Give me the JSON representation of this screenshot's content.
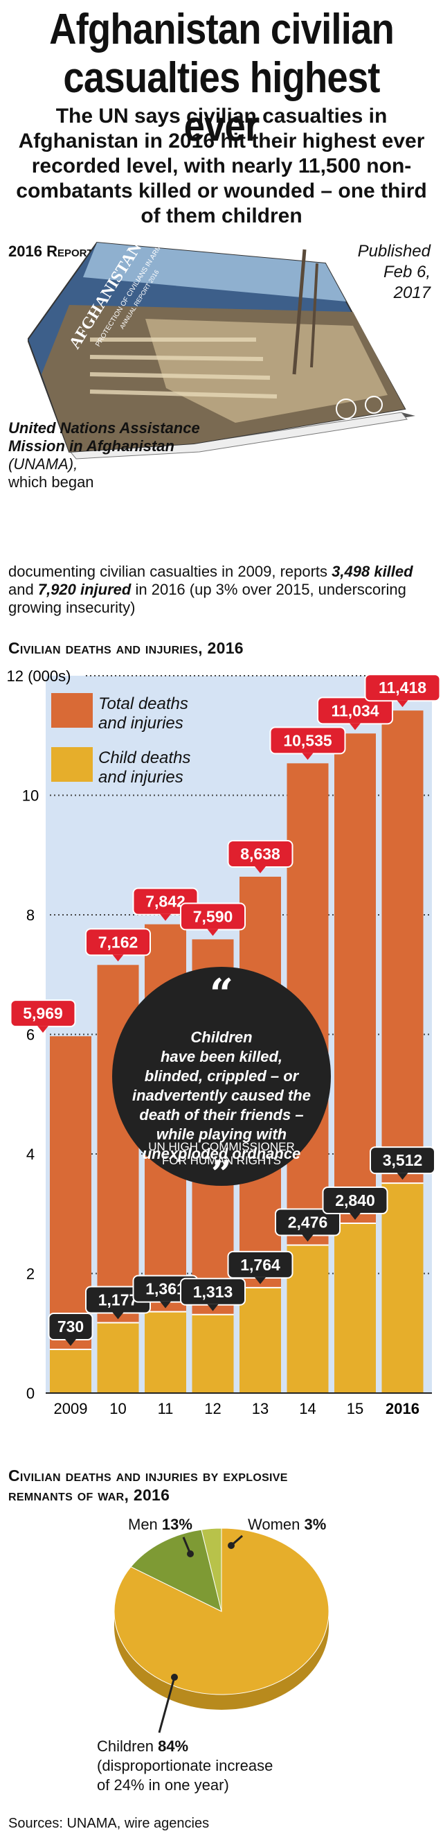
{
  "header": {
    "title_line1": "Afghanistan civilian",
    "title_line2": "casualties highest ever",
    "subtitle": "The UN says civilian casualties in Afghanistan in 2016 hit their highest ever recorded level, with nearly 11,500 non-combatants killed or wounded – one third of them children"
  },
  "report": {
    "label_year": "2016",
    "label_word": "Report",
    "published": [
      "Published",
      "Feb 6,",
      "2017"
    ],
    "book_title": "AFGHANISTAN",
    "book_subtitle": "PROTECTION OF CIVILIANS IN ARMED CONFLICT",
    "book_subtitle2": "ANNUAL REPORT 2016"
  },
  "description": {
    "org": "United Nations Assistance Mission in Afghanistan",
    "abbr": "(UNAMA),",
    "text1": "which began",
    "text2": "documenting civilian casualties in 2009, reports",
    "killed": "3,498 killed",
    "and": "and",
    "injured": "7,920 injured",
    "text3": "in 2016 (up 3% over 2015, underscoring growing insecurity)"
  },
  "chart_data": [
    {
      "type": "bar",
      "title": "Civilian deaths and injuries, 2016",
      "ylabel": "12 (000s)",
      "ylim": [
        0,
        12000
      ],
      "yticks": [
        0,
        2,
        4,
        6,
        8,
        10,
        12
      ],
      "categories": [
        "2009",
        "10",
        "11",
        "12",
        "13",
        "14",
        "15",
        "2016"
      ],
      "series": [
        {
          "name": "Total deaths and injuries",
          "values": [
            5969,
            7162,
            7842,
            7590,
            8638,
            10535,
            11034,
            11418
          ],
          "labels": [
            "5,969",
            "7,162",
            "7,842",
            "7,590",
            "8,638",
            "10,535",
            "11,034",
            "11,418"
          ],
          "color": "#d96a36"
        },
        {
          "name": "Child deaths and injuries",
          "values": [
            730,
            1177,
            1361,
            1313,
            1764,
            2476,
            2840,
            3512
          ],
          "labels": [
            "730",
            "1,177",
            "1,361",
            "1,313",
            "1,764",
            "2,476",
            "2,840",
            "3,512"
          ],
          "color": "#e6ae2b"
        }
      ],
      "legend": [
        "Total deaths",
        "and injuries",
        "Child deaths",
        "and injuries"
      ],
      "quote": {
        "open": "“",
        "lines": [
          "Children",
          "have been killed,",
          "blinded, crippled – or",
          "inadvertently caused the",
          "death of their friends –",
          "while playing with",
          "unexploded ordnance"
        ],
        "source": [
          "UN HIGH COMMISSIONER",
          "FOR HUMAN RIGHTS"
        ],
        "close": "”"
      }
    },
    {
      "type": "pie",
      "title_line1": "Civilian deaths and injuries by explosive",
      "title_line2": "remnants of war, 2016",
      "slices": [
        {
          "name": "Children",
          "value": 84,
          "color": "#e6ae2b"
        },
        {
          "name": "Men",
          "value": 13,
          "color": "#7e9a34"
        },
        {
          "name": "Women",
          "value": 3,
          "color": "#b8c24a"
        }
      ],
      "labels": {
        "men": "Men",
        "men_pct": "13%",
        "women": "Women",
        "women_pct": "3%",
        "children": "Children",
        "children_pct": "84%",
        "children_note": [
          "(disproportionate increase",
          "of 24% in one year)"
        ]
      }
    }
  ],
  "footer": {
    "sources": "Sources: UNAMA, wire agencies"
  }
}
